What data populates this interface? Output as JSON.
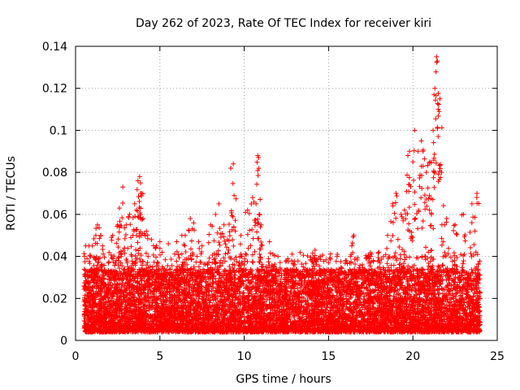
{
  "chart_data": {
    "type": "scatter",
    "title": "Day 262 of 2023, Rate Of TEC Index for receiver kiri",
    "xlabel": "GPS time / hours",
    "ylabel": "ROTI / TECUs",
    "xlim": [
      0,
      25
    ],
    "ylim": [
      0,
      0.14
    ],
    "x_ticks": [
      0,
      5,
      10,
      15,
      20,
      25
    ],
    "x_tick_labels": [
      "0",
      "5",
      "10",
      "15",
      "20",
      "25"
    ],
    "y_ticks": [
      0,
      0.02,
      0.04,
      0.06,
      0.08,
      0.1,
      0.12,
      0.14
    ],
    "y_tick_labels": [
      "0",
      "0.02",
      "0.04",
      "0.06",
      "0.08",
      "0.1",
      "0.12",
      "0.14"
    ],
    "grid": true,
    "marker": "+",
    "marker_color": "#ff0000",
    "series": [
      {
        "name": "ROTI",
        "points": [
          [
            0.6,
            0.045
          ],
          [
            0.8,
            0.045
          ],
          [
            1.0,
            0.045
          ],
          [
            1.2,
            0.05
          ],
          [
            1.3,
            0.055
          ],
          [
            1.5,
            0.05
          ],
          [
            1.6,
            0.045
          ],
          [
            2.2,
            0.05
          ],
          [
            2.5,
            0.055
          ],
          [
            2.6,
            0.063
          ],
          [
            2.8,
            0.073
          ],
          [
            3.0,
            0.055
          ],
          [
            3.2,
            0.06
          ],
          [
            3.4,
            0.05
          ],
          [
            3.5,
            0.065
          ],
          [
            3.6,
            0.062
          ],
          [
            3.7,
            0.076
          ],
          [
            3.8,
            0.078
          ],
          [
            3.85,
            0.075
          ],
          [
            3.9,
            0.07
          ],
          [
            4.0,
            0.058
          ],
          [
            4.2,
            0.052
          ],
          [
            4.5,
            0.048
          ],
          [
            4.8,
            0.045
          ],
          [
            5.0,
            0.047
          ],
          [
            5.5,
            0.046
          ],
          [
            6.0,
            0.047
          ],
          [
            6.3,
            0.05
          ],
          [
            6.5,
            0.05
          ],
          [
            6.8,
            0.058
          ],
          [
            7.0,
            0.056
          ],
          [
            7.3,
            0.047
          ],
          [
            7.5,
            0.045
          ],
          [
            8.0,
            0.055
          ],
          [
            8.3,
            0.06
          ],
          [
            8.5,
            0.065
          ],
          [
            8.8,
            0.055
          ],
          [
            9.0,
            0.048
          ],
          [
            9.2,
            0.082
          ],
          [
            9.35,
            0.084
          ],
          [
            9.4,
            0.069
          ],
          [
            9.8,
            0.05
          ],
          [
            10.2,
            0.062
          ],
          [
            10.5,
            0.068
          ],
          [
            10.7,
            0.065
          ],
          [
            10.8,
            0.088
          ],
          [
            10.85,
            0.087
          ],
          [
            10.9,
            0.06
          ],
          [
            11.0,
            0.055
          ],
          [
            11.5,
            0.047
          ],
          [
            12.0,
            0.04
          ],
          [
            12.5,
            0.038
          ],
          [
            13.0,
            0.036
          ],
          [
            13.5,
            0.035
          ],
          [
            14.0,
            0.038
          ],
          [
            14.2,
            0.043
          ],
          [
            14.5,
            0.04
          ],
          [
            15.0,
            0.037
          ],
          [
            15.5,
            0.04
          ],
          [
            16.0,
            0.038
          ],
          [
            16.3,
            0.04
          ],
          [
            16.5,
            0.05
          ],
          [
            17.0,
            0.036
          ],
          [
            17.5,
            0.04
          ],
          [
            18.0,
            0.038
          ],
          [
            18.5,
            0.05
          ],
          [
            18.8,
            0.065
          ],
          [
            19.0,
            0.07
          ],
          [
            19.3,
            0.06
          ],
          [
            19.5,
            0.062
          ],
          [
            19.7,
            0.088
          ],
          [
            19.8,
            0.09
          ],
          [
            20.0,
            0.085
          ],
          [
            20.1,
            0.1
          ],
          [
            20.3,
            0.09
          ],
          [
            20.5,
            0.095
          ],
          [
            20.6,
            0.09
          ],
          [
            20.8,
            0.08
          ],
          [
            21.0,
            0.085
          ],
          [
            21.1,
            0.06
          ],
          [
            21.2,
            0.1
          ],
          [
            21.3,
            0.12
          ],
          [
            21.4,
            0.135
          ],
          [
            21.45,
            0.133
          ],
          [
            21.5,
            0.11
          ],
          [
            21.6,
            0.115
          ],
          [
            21.7,
            0.08
          ],
          [
            22.0,
            0.058
          ],
          [
            22.5,
            0.055
          ],
          [
            23.0,
            0.06
          ],
          [
            23.5,
            0.065
          ],
          [
            23.8,
            0.07
          ]
        ],
        "baseline_band": {
          "x_range": [
            0.5,
            24.0
          ],
          "y_range": [
            0.003,
            0.035
          ],
          "note": "dense cloud of points covering the whole time range"
        }
      }
    ]
  }
}
